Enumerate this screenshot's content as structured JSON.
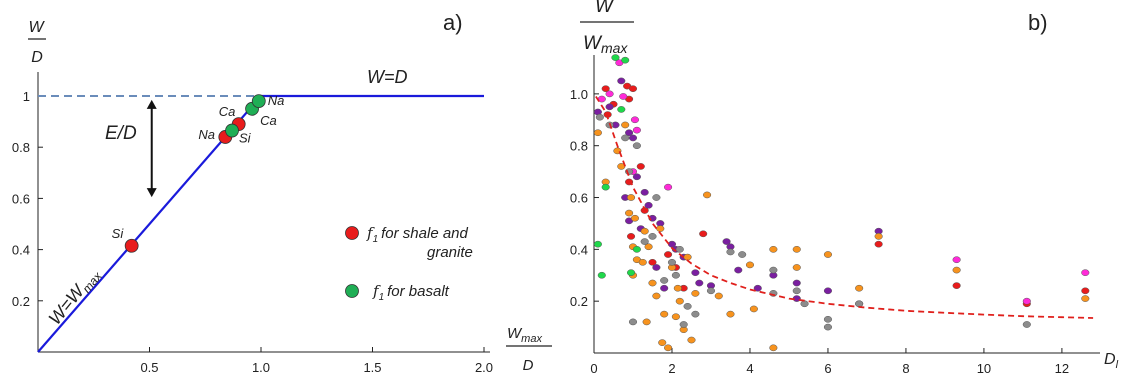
{
  "chart_data": [
    {
      "panel": "a)",
      "type": "line",
      "ylabel": {
        "num": "W",
        "den": "D"
      },
      "xlabel": {
        "num": "W",
        "num_sub": "max",
        "den": "D"
      },
      "xlim": [
        0,
        2.0
      ],
      "ylim": [
        0,
        1.1
      ],
      "xticks": [
        {
          "v": 0.5,
          "t": "0.5"
        },
        {
          "v": 1.0,
          "t": "1.0"
        },
        {
          "v": 1.5,
          "t": "1.5"
        },
        {
          "v": 2.0,
          "t": "2.0"
        }
      ],
      "yticks": [
        {
          "v": 0.2,
          "t": "0.2"
        },
        {
          "v": 0.4,
          "t": "0.4"
        },
        {
          "v": 0.6,
          "t": "0.6"
        },
        {
          "v": 0.8,
          "t": "0.8"
        },
        {
          "v": 1.0,
          "t": "1"
        }
      ],
      "lines": [
        {
          "name": "W=W max",
          "points": [
            [
              0,
              0
            ],
            [
              1.0,
              1.0
            ]
          ],
          "color": "#1a1adb",
          "style": "solid"
        },
        {
          "name": "W=D",
          "points": [
            [
              1.0,
              1.0
            ],
            [
              2.0,
              1.0
            ]
          ],
          "color": "#1a1adb",
          "style": "solid"
        },
        {
          "name": "ref",
          "points": [
            [
              0,
              1.0
            ],
            [
              1.0,
              1.0
            ]
          ],
          "color": "#6a8cba",
          "style": "dashed"
        }
      ],
      "points": [
        {
          "x": 0.42,
          "y": 0.415,
          "label": "Si",
          "group": "shale"
        },
        {
          "x": 0.84,
          "y": 0.84,
          "label": "Na",
          "group": "shale"
        },
        {
          "x": 0.9,
          "y": 0.89,
          "label": "Ca",
          "group": "shale"
        },
        {
          "x": 0.87,
          "y": 0.865,
          "label": "Si",
          "group": "basalt"
        },
        {
          "x": 0.96,
          "y": 0.95,
          "label": "Ca",
          "group": "basalt"
        },
        {
          "x": 0.99,
          "y": 0.98,
          "label": "Na",
          "group": "basalt"
        }
      ],
      "colors": {
        "shale": "#e81c1c",
        "basalt": "#1fae55"
      },
      "arrow_label": "E/D",
      "line_labels": {
        "w_eq_wmax": "W=W",
        "w_eq_wmax_sub": "max",
        "w_eq_d": "W=D"
      },
      "legend": [
        {
          "group": "shale",
          "prefix": "f",
          "sub": "1",
          "text1": "for shale and",
          "text2": "granite"
        },
        {
          "group": "basalt",
          "prefix": "f",
          "sub": "1",
          "text1": "for basalt",
          "text2": ""
        }
      ]
    },
    {
      "panel": "b)",
      "type": "scatter",
      "ylabel": {
        "num": "W",
        "den": "W",
        "den_sub": "max"
      },
      "xlabel": {
        "main": "D",
        "sub": "l"
      },
      "xlim": [
        0,
        12.9
      ],
      "ylim": [
        0,
        1.15
      ],
      "xticks": [
        {
          "v": 0,
          "t": "0"
        },
        {
          "v": 2,
          "t": "2"
        },
        {
          "v": 4,
          "t": "4"
        },
        {
          "v": 6,
          "t": "6"
        },
        {
          "v": 8,
          "t": "8"
        },
        {
          "v": 10,
          "t": "10"
        },
        {
          "v": 12,
          "t": "12"
        }
      ],
      "yticks": [
        {
          "v": 0.2,
          "t": "0.2"
        },
        {
          "v": 0.4,
          "t": "0.4"
        },
        {
          "v": 0.6,
          "t": "0.6"
        },
        {
          "v": 0.8,
          "t": "0.8"
        },
        {
          "v": 1.0,
          "t": "1.0"
        }
      ],
      "fit": {
        "color": "#e0201c",
        "style": "dashed",
        "points": [
          [
            0.05,
            0.99
          ],
          [
            0.3,
            0.93
          ],
          [
            0.6,
            0.8
          ],
          [
            1.0,
            0.64
          ],
          [
            1.5,
            0.5
          ],
          [
            2,
            0.405
          ],
          [
            2.5,
            0.345
          ],
          [
            3,
            0.3
          ],
          [
            3.5,
            0.27
          ],
          [
            4,
            0.245
          ],
          [
            5,
            0.21
          ],
          [
            6,
            0.19
          ],
          [
            7,
            0.175
          ],
          [
            8,
            0.163
          ],
          [
            9,
            0.155
          ],
          [
            10,
            0.148
          ],
          [
            11,
            0.142
          ],
          [
            12,
            0.138
          ],
          [
            12.8,
            0.135
          ]
        ]
      },
      "series": [
        {
          "color": "#e81c1c",
          "points": [
            [
              0.3,
              1.02
            ],
            [
              0.35,
              0.92
            ],
            [
              0.5,
              0.96
            ],
            [
              0.85,
              1.03
            ],
            [
              0.9,
              0.98
            ],
            [
              1.0,
              1.02
            ],
            [
              0.9,
              0.66
            ],
            [
              1.3,
              0.55
            ],
            [
              1.5,
              0.35
            ],
            [
              1.9,
              0.38
            ],
            [
              2.1,
              0.33
            ],
            [
              2.3,
              0.25
            ],
            [
              2.8,
              0.46
            ],
            [
              7.3,
              0.42
            ],
            [
              9.3,
              0.26
            ],
            [
              11.1,
              0.19
            ],
            [
              12.6,
              0.24
            ],
            [
              0.95,
              0.45
            ],
            [
              1.2,
              0.72
            ]
          ]
        },
        {
          "color": "#ff2ad8",
          "points": [
            [
              0.4,
              1.0
            ],
            [
              0.65,
              1.12
            ],
            [
              0.75,
              0.99
            ],
            [
              1.05,
              0.9
            ],
            [
              1.0,
              0.7
            ],
            [
              1.9,
              0.64
            ],
            [
              9.3,
              0.36
            ],
            [
              11.1,
              0.2
            ],
            [
              12.6,
              0.31
            ],
            [
              0.2,
              0.98
            ],
            [
              1.1,
              0.86
            ]
          ]
        },
        {
          "color": "#7a1fa0",
          "points": [
            [
              0.1,
              0.93
            ],
            [
              0.4,
              0.95
            ],
            [
              0.55,
              0.88
            ],
            [
              0.7,
              1.05
            ],
            [
              0.9,
              0.85
            ],
            [
              1.0,
              0.83
            ],
            [
              1.3,
              0.62
            ],
            [
              1.5,
              0.52
            ],
            [
              1.7,
              0.5
            ],
            [
              2.0,
              0.42
            ],
            [
              2.1,
              0.4
            ],
            [
              2.3,
              0.37
            ],
            [
              2.6,
              0.31
            ],
            [
              3.0,
              0.26
            ],
            [
              3.5,
              0.41
            ],
            [
              3.7,
              0.32
            ],
            [
              4.2,
              0.25
            ],
            [
              4.6,
              0.3
            ],
            [
              5.2,
              0.21
            ],
            [
              5.2,
              0.27
            ],
            [
              6.0,
              0.24
            ],
            [
              6.8,
              0.19
            ],
            [
              7.3,
              0.47
            ],
            [
              1.8,
              0.25
            ],
            [
              2.7,
              0.27
            ],
            [
              1.6,
              0.33
            ],
            [
              0.9,
              0.51
            ],
            [
              1.1,
              0.68
            ],
            [
              1.4,
              0.57
            ],
            [
              1.2,
              0.48
            ],
            [
              3.4,
              0.43
            ],
            [
              0.8,
              0.6
            ]
          ]
        },
        {
          "color": "#f7931e",
          "points": [
            [
              0.1,
              0.85
            ],
            [
              0.3,
              0.66
            ],
            [
              0.6,
              0.78
            ],
            [
              0.8,
              0.88
            ],
            [
              0.9,
              0.54
            ],
            [
              1.0,
              0.3
            ],
            [
              1.1,
              0.36
            ],
            [
              1.3,
              0.47
            ],
            [
              1.4,
              0.41
            ],
            [
              1.5,
              0.27
            ],
            [
              1.6,
              0.22
            ],
            [
              1.7,
              0.48
            ],
            [
              1.8,
              0.15
            ],
            [
              1.9,
              0.02
            ],
            [
              2.0,
              0.33
            ],
            [
              2.1,
              0.14
            ],
            [
              2.2,
              0.2
            ],
            [
              2.3,
              0.09
            ],
            [
              2.4,
              0.37
            ],
            [
              2.6,
              0.23
            ],
            [
              2.9,
              0.61
            ],
            [
              3.5,
              0.15
            ],
            [
              4.0,
              0.34
            ],
            [
              4.6,
              0.4
            ],
            [
              4.6,
              0.02
            ],
            [
              5.2,
              0.4
            ],
            [
              5.2,
              0.33
            ],
            [
              6.0,
              0.38
            ],
            [
              6.8,
              0.25
            ],
            [
              7.3,
              0.45
            ],
            [
              9.3,
              0.32
            ],
            [
              12.6,
              0.21
            ],
            [
              0.95,
              0.6
            ],
            [
              1.25,
              0.35
            ],
            [
              2.15,
              0.25
            ],
            [
              1.0,
              0.41
            ],
            [
              1.35,
              0.12
            ],
            [
              2.5,
              0.05
            ],
            [
              3.2,
              0.22
            ],
            [
              4.1,
              0.17
            ],
            [
              1.75,
              0.04
            ],
            [
              0.7,
              0.72
            ],
            [
              1.05,
              0.52
            ]
          ]
        },
        {
          "color": "#8c8c8c",
          "points": [
            [
              0.15,
              0.91
            ],
            [
              0.4,
              0.88
            ],
            [
              0.8,
              0.83
            ],
            [
              1.0,
              0.12
            ],
            [
              1.1,
              0.8
            ],
            [
              1.5,
              0.45
            ],
            [
              1.8,
              0.28
            ],
            [
              2.0,
              0.35
            ],
            [
              2.1,
              0.3
            ],
            [
              2.4,
              0.18
            ],
            [
              3.0,
              0.24
            ],
            [
              3.5,
              0.39
            ],
            [
              3.8,
              0.38
            ],
            [
              4.6,
              0.23
            ],
            [
              5.2,
              0.24
            ],
            [
              6.0,
              0.1
            ],
            [
              6.0,
              0.13
            ],
            [
              6.8,
              0.19
            ],
            [
              11.1,
              0.11
            ],
            [
              1.3,
              0.43
            ],
            [
              2.2,
              0.4
            ],
            [
              2.6,
              0.15
            ],
            [
              4.6,
              0.32
            ],
            [
              5.4,
              0.19
            ],
            [
              1.6,
              0.6
            ],
            [
              0.9,
              0.7
            ],
            [
              2.3,
              0.11
            ]
          ]
        },
        {
          "color": "#1fd84a",
          "points": [
            [
              0.2,
              0.3
            ],
            [
              0.3,
              0.64
            ],
            [
              0.55,
              1.14
            ],
            [
              0.7,
              0.94
            ],
            [
              0.8,
              1.13
            ],
            [
              0.95,
              0.31
            ],
            [
              1.1,
              0.4
            ],
            [
              0.1,
              0.42
            ]
          ]
        }
      ]
    }
  ]
}
